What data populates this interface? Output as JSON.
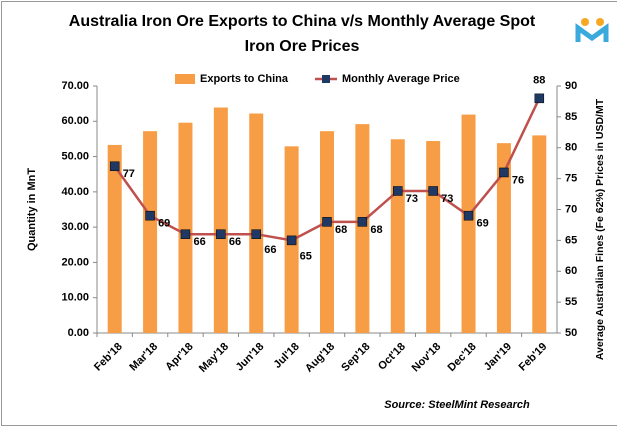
{
  "chart_data": {
    "type": "bar_line",
    "title": "Australia Iron Ore Exports to China v/s Monthly Average Spot Iron Ore Prices",
    "title_lines": [
      "Australia Iron Ore Exports to China v/s Monthly Average Spot",
      "Iron Ore Prices"
    ],
    "ylabel": "Quantity in MnT",
    "y2label": "Average Australian Fines (Fe 62%) Prices in USD/MT",
    "source": "Source: SteelMint Research",
    "categories": [
      "Feb'18",
      "Mar'18",
      "Apr'18",
      "May'18",
      "Jun'18",
      "Jul'18",
      "Aug'18",
      "Sep'18",
      "Oct'18",
      "Nov'18",
      "Dec'18",
      "Jan'19",
      "Feb'19"
    ],
    "series": [
      {
        "name": "Exports to China",
        "color": "#f79d46",
        "values": [
          53.3,
          57.2,
          59.6,
          63.9,
          62.2,
          52.9,
          57.2,
          59.2,
          54.9,
          54.4,
          61.9,
          53.8,
          56.0
        ]
      },
      {
        "name": "Monthly Average Price",
        "color": "#c0504d",
        "marker_color": "#1f3864",
        "axis": "y2",
        "values": [
          77,
          69,
          66,
          66,
          66,
          65,
          68,
          68,
          73,
          73,
          69,
          76,
          88
        ]
      }
    ],
    "ylim": [
      0,
      70
    ],
    "yticks": [
      {
        "value": 0,
        "label": "0.00"
      },
      {
        "value": 10,
        "label": "10.00"
      },
      {
        "value": 20,
        "label": "20.00"
      },
      {
        "value": 30,
        "label": "30.00"
      },
      {
        "value": 40,
        "label": "40.00"
      },
      {
        "value": 50,
        "label": "50.00"
      },
      {
        "value": 60,
        "label": "60.00"
      },
      {
        "value": 70,
        "label": "70.00"
      }
    ],
    "y2lim": [
      50,
      90
    ],
    "y2ticks": [
      50,
      55,
      60,
      65,
      70,
      75,
      80,
      85,
      90
    ],
    "legend": "top"
  }
}
